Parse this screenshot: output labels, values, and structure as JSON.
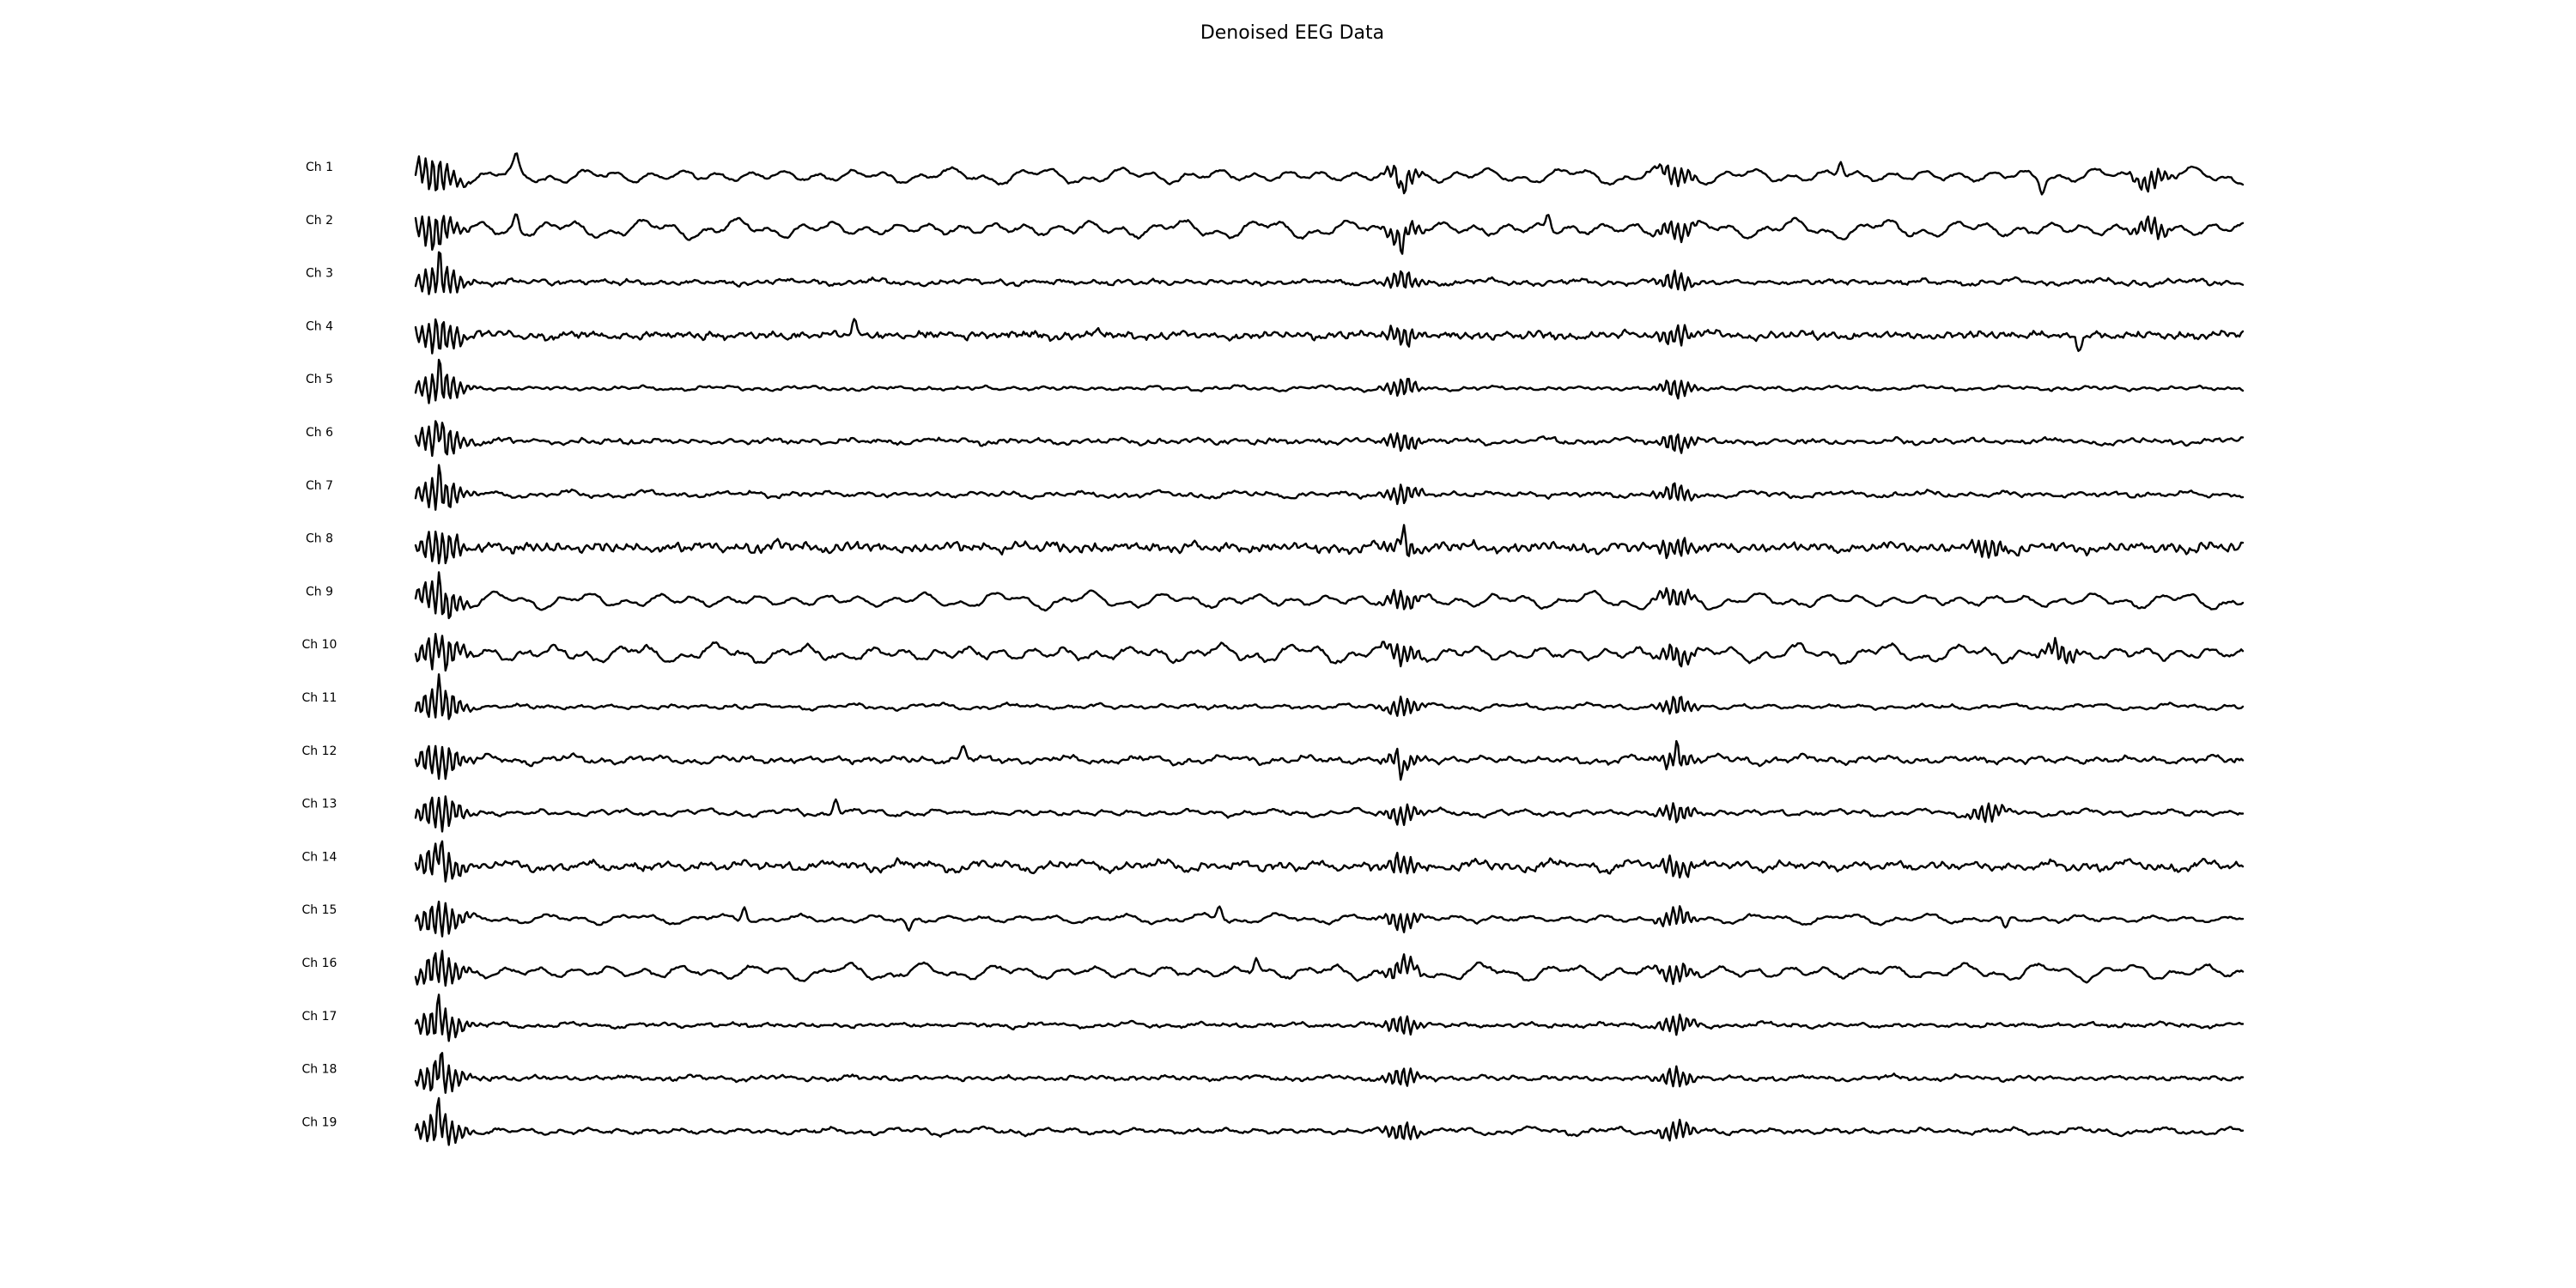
{
  "chart_data": {
    "type": "line",
    "title": "Denoised EEG Data",
    "xlabel": "",
    "ylabel": "",
    "grid": false,
    "axes_visible": false,
    "line_color": "#000000",
    "channels": [
      "Ch 1",
      "Ch 2",
      "Ch 3",
      "Ch 4",
      "Ch 5",
      "Ch 6",
      "Ch 7",
      "Ch 8",
      "Ch 9",
      "Ch 10",
      "Ch 11",
      "Ch 12",
      "Ch 13",
      "Ch 14",
      "Ch 15",
      "Ch 16",
      "Ch 17",
      "Ch 18",
      "Ch 19"
    ],
    "trace_style": {
      "Ch 1": {
        "bursts": [
          0.01,
          0.54,
          0.69,
          0.95
        ],
        "slow": 0.9,
        "fast": 0.3,
        "spikes": [
          0.055,
          0.54,
          0.78,
          0.89
        ]
      },
      "Ch 2": {
        "bursts": [
          0.01,
          0.54,
          0.69,
          0.95
        ],
        "slow": 1.0,
        "fast": 0.35,
        "spikes": [
          0.055,
          0.54,
          0.62
        ]
      },
      "Ch 3": {
        "bursts": [
          0.013,
          0.54,
          0.69
        ],
        "slow": 0.3,
        "fast": 0.5,
        "spikes": [
          0.013
        ]
      },
      "Ch 4": {
        "bursts": [
          0.013,
          0.54,
          0.69
        ],
        "slow": 0.3,
        "fast": 0.8,
        "spikes": [
          0.24,
          0.91
        ]
      },
      "Ch 5": {
        "bursts": [
          0.013,
          0.54,
          0.69
        ],
        "slow": 0.25,
        "fast": 0.3,
        "spikes": [
          0.013
        ]
      },
      "Ch 6": {
        "bursts": [
          0.013,
          0.54,
          0.69
        ],
        "slow": 0.3,
        "fast": 0.55,
        "spikes": [
          0.013
        ]
      },
      "Ch 7": {
        "bursts": [
          0.013,
          0.54,
          0.69
        ],
        "slow": 0.35,
        "fast": 0.45,
        "spikes": [
          0.013
        ]
      },
      "Ch 8": {
        "bursts": [
          0.013,
          0.54,
          0.69,
          0.86
        ],
        "slow": 0.35,
        "fast": 1.0,
        "spikes": [
          0.54
        ]
      },
      "Ch 9": {
        "bursts": [
          0.013,
          0.54,
          0.69
        ],
        "slow": 0.9,
        "fast": 0.35,
        "spikes": [
          0.013
        ]
      },
      "Ch 10": {
        "bursts": [
          0.013,
          0.54,
          0.69,
          0.9
        ],
        "slow": 1.0,
        "fast": 0.5,
        "spikes": [
          0.013
        ]
      },
      "Ch 11": {
        "bursts": [
          0.013,
          0.54,
          0.69
        ],
        "slow": 0.3,
        "fast": 0.35,
        "spikes": [
          0.013
        ]
      },
      "Ch 12": {
        "bursts": [
          0.013,
          0.54,
          0.69
        ],
        "slow": 0.45,
        "fast": 0.5,
        "spikes": [
          0.3,
          0.54,
          0.69
        ]
      },
      "Ch 13": {
        "bursts": [
          0.013,
          0.54,
          0.69,
          0.86
        ],
        "slow": 0.4,
        "fast": 0.4,
        "spikes": [
          0.23
        ]
      },
      "Ch 14": {
        "bursts": [
          0.013,
          0.54,
          0.69
        ],
        "slow": 0.55,
        "fast": 0.8,
        "spikes": [
          0.013
        ]
      },
      "Ch 15": {
        "bursts": [
          0.013,
          0.54,
          0.69
        ],
        "slow": 0.55,
        "fast": 0.3,
        "spikes": [
          0.18,
          0.27,
          0.44,
          0.87
        ]
      },
      "Ch 16": {
        "bursts": [
          0.013,
          0.54,
          0.69
        ],
        "slow": 0.9,
        "fast": 0.4,
        "spikes": [
          0.46
        ]
      },
      "Ch 17": {
        "bursts": [
          0.013,
          0.54,
          0.69
        ],
        "slow": 0.25,
        "fast": 0.4,
        "spikes": [
          0.013
        ]
      },
      "Ch 18": {
        "bursts": [
          0.013,
          0.54,
          0.69
        ],
        "slow": 0.25,
        "fast": 0.45,
        "spikes": [
          0.013
        ]
      },
      "Ch 19": {
        "bursts": [
          0.013,
          0.54,
          0.69
        ],
        "slow": 0.4,
        "fast": 0.35,
        "spikes": [
          0.013
        ]
      }
    }
  }
}
